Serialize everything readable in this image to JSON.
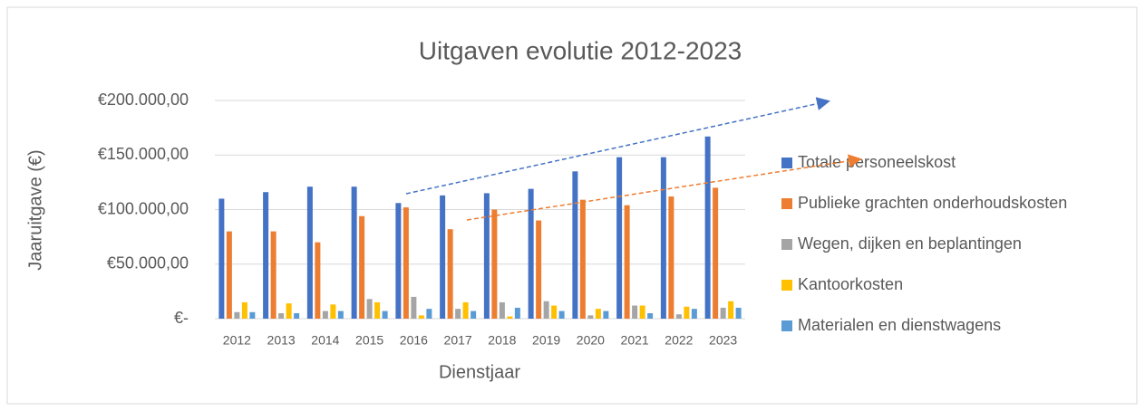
{
  "chart_data": {
    "type": "bar",
    "title": "Uitgaven evolutie 2012-2023",
    "y_label": "Jaaruitgave (€)",
    "x_label": "Dienstjaar",
    "categories": [
      "2012",
      "2013",
      "2014",
      "2015",
      "2016",
      "2017",
      "2018",
      "2019",
      "2020",
      "2021",
      "2022",
      "2023"
    ],
    "series": [
      {
        "name": "Totale personeelskost",
        "color": "#4472c4",
        "values": [
          110000,
          116000,
          121000,
          121000,
          106000,
          113000,
          115000,
          119000,
          135000,
          148000,
          148000,
          167000
        ]
      },
      {
        "name": "Publieke grachten onderhoudskosten",
        "color": "#ed7d31",
        "values": [
          80000,
          80000,
          70000,
          94000,
          102000,
          82000,
          100000,
          90000,
          109000,
          104000,
          112000,
          120000
        ]
      },
      {
        "name": "Wegen, dijken en beplantingen",
        "color": "#a5a5a5",
        "values": [
          6000,
          5000,
          7000,
          18000,
          20000,
          9000,
          15000,
          16000,
          3000,
          12000,
          4000,
          10000
        ]
      },
      {
        "name": "Kantoorkosten",
        "color": "#ffc000",
        "values": [
          15000,
          14000,
          13000,
          15000,
          3000,
          15000,
          2000,
          12000,
          9000,
          12000,
          11000,
          16000
        ]
      },
      {
        "name": "Materialen en dienstwagens",
        "color": "#5b9bd5",
        "values": [
          6000,
          5000,
          7000,
          7000,
          9000,
          7000,
          10000,
          7000,
          7000,
          5000,
          9000,
          10000
        ]
      }
    ],
    "ylim": [
      0,
      200000
    ],
    "yticks": [
      {
        "value": 0,
        "label": "€-"
      },
      {
        "value": 50000,
        "label": "€50.000,00"
      },
      {
        "value": 100000,
        "label": "€100.000,00"
      },
      {
        "value": 150000,
        "label": "€150.000,00"
      },
      {
        "value": 200000,
        "label": "€200.000,00"
      }
    ],
    "grid": true,
    "legend": "right"
  }
}
